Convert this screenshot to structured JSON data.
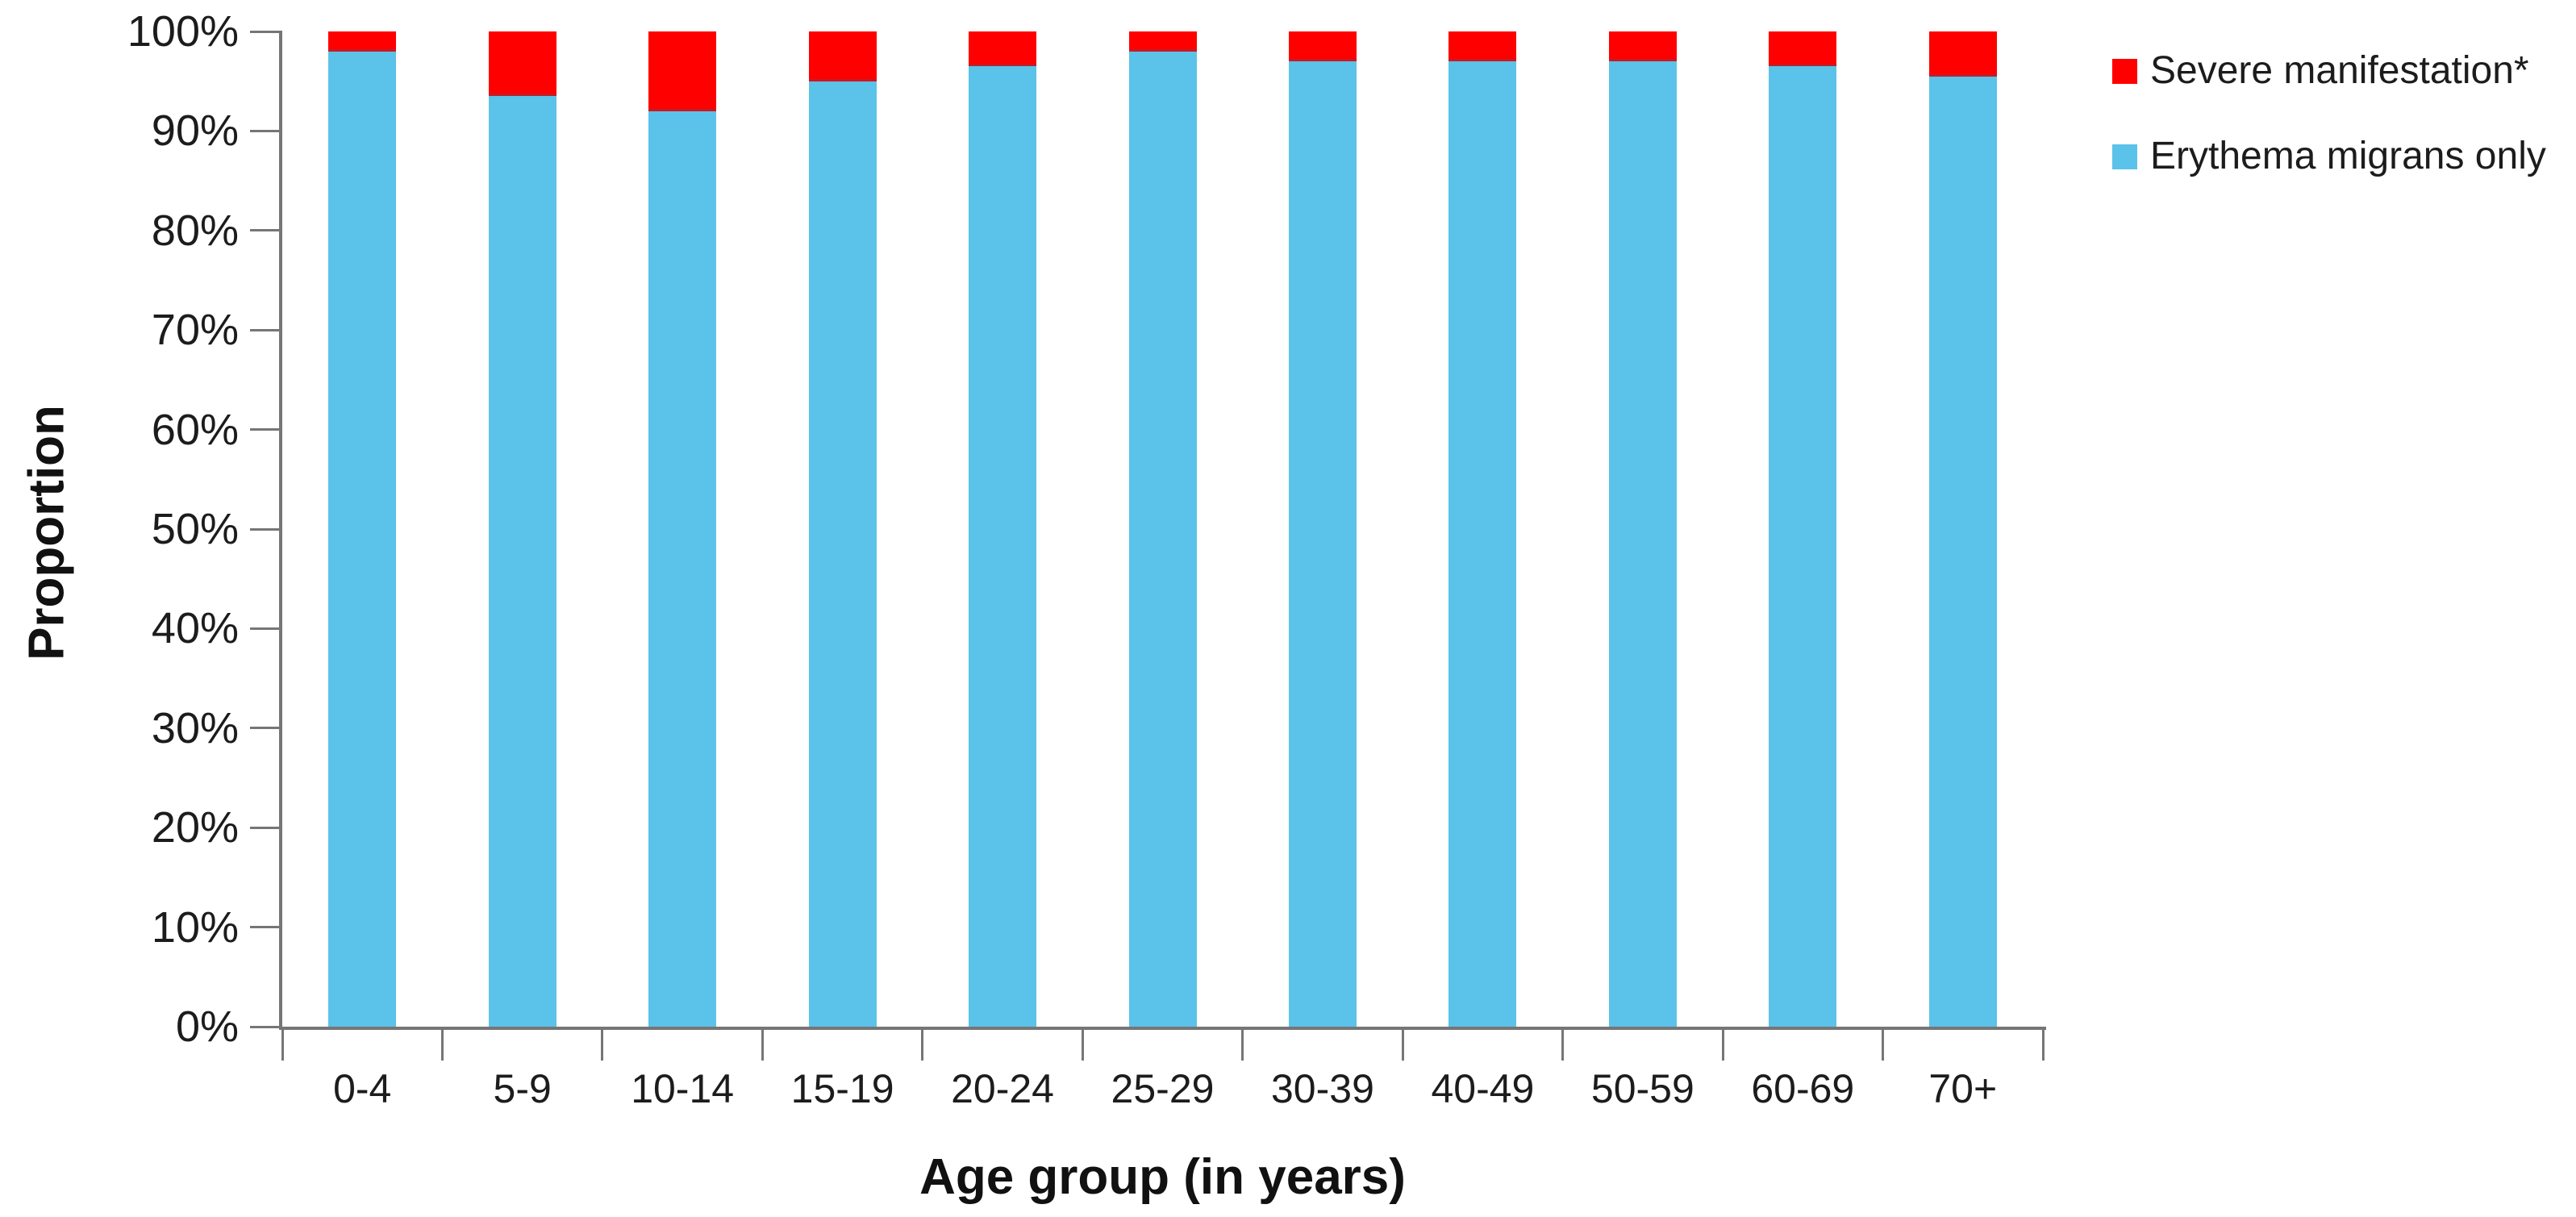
{
  "chart_data": {
    "type": "bar",
    "stacked": true,
    "title": "",
    "xlabel": "Age group (in years)",
    "ylabel": "Proportion",
    "categories": [
      "0-4",
      "5-9",
      "10-14",
      "15-19",
      "20-24",
      "25-29",
      "30-39",
      "40-49",
      "50-59",
      "60-69",
      "70+"
    ],
    "series": [
      {
        "name": "Severe manifestation*",
        "color": "#ff0000",
        "values": [
          2,
          6.5,
          8,
          5,
          3.5,
          2,
          3,
          3,
          3,
          3.5,
          4.5
        ]
      },
      {
        "name": "Erythema migrans only",
        "color": "#5bc2e9",
        "values": [
          98,
          93.5,
          92,
          95,
          96.5,
          98,
          97,
          97,
          97,
          96.5,
          95.5
        ]
      }
    ],
    "ylim": [
      0,
      100
    ],
    "ytick_labels": [
      "0%",
      "10%",
      "20%",
      "30%",
      "40%",
      "50%",
      "60%",
      "70%",
      "80%",
      "90%",
      "100%"
    ],
    "grid": false,
    "legend_position": "top-right",
    "axis_color": "#767676"
  },
  "legend": {
    "items": [
      {
        "label": "Severe manifestation*",
        "color": "#ff0000"
      },
      {
        "label": "Erythema migrans only",
        "color": "#5bc2e9"
      }
    ]
  }
}
